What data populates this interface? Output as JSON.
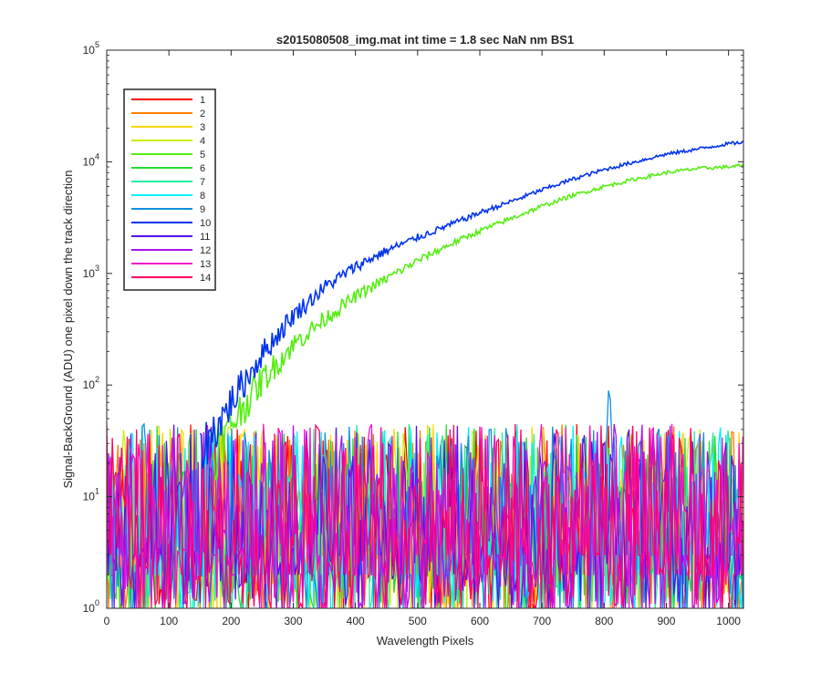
{
  "chart_data": {
    "type": "line",
    "title": "s2015080508_img.mat int time = 1.8 sec  NaN nm BS1",
    "xlabel": "Wavelength Pixels",
    "ylabel": "Signal-BackGround (ADU) one pixel down the track direction",
    "xlim": [
      0,
      1024
    ],
    "ylim": [
      1,
      100000
    ],
    "yscale": "log",
    "x_ticks": [
      0,
      100,
      200,
      300,
      400,
      500,
      600,
      700,
      800,
      900,
      1000
    ],
    "y_ticks": [
      {
        "value": 1,
        "base": "10",
        "exp": "0"
      },
      {
        "value": 10,
        "base": "10",
        "exp": "1"
      },
      {
        "value": 100,
        "base": "10",
        "exp": "2"
      },
      {
        "value": 1000,
        "base": "10",
        "exp": "3"
      },
      {
        "value": 10000,
        "base": "10",
        "exp": "4"
      },
      {
        "value": 100000,
        "base": "10",
        "exp": "5"
      }
    ],
    "grid": false,
    "legend_position": "top-left",
    "noise_range": [
      1,
      45
    ],
    "series": [
      {
        "name": "1",
        "color": "#ff0000",
        "noise": true
      },
      {
        "name": "2",
        "color": "#ff7f00",
        "noise": true
      },
      {
        "name": "3",
        "color": "#ffd700",
        "noise": true
      },
      {
        "name": "4",
        "color": "#c8f000",
        "noise": true
      },
      {
        "name": "5",
        "color": "#55ee11",
        "noise": false,
        "points": [
          [
            170,
            20
          ],
          [
            200,
            45
          ],
          [
            250,
            110
          ],
          [
            300,
            230
          ],
          [
            350,
            390
          ],
          [
            400,
            620
          ],
          [
            450,
            900
          ],
          [
            500,
            1300
          ],
          [
            550,
            1800
          ],
          [
            600,
            2400
          ],
          [
            650,
            3100
          ],
          [
            700,
            4000
          ],
          [
            750,
            5000
          ],
          [
            800,
            6000
          ],
          [
            850,
            7000
          ],
          [
            900,
            8000
          ],
          [
            950,
            8700
          ],
          [
            1000,
            9000
          ],
          [
            1024,
            9300
          ]
        ]
      },
      {
        "name": "6",
        "color": "#22dd33",
        "noise": true
      },
      {
        "name": "7",
        "color": "#22eea0",
        "noise": true
      },
      {
        "name": "8",
        "color": "#00f0ff",
        "noise": true
      },
      {
        "name": "9",
        "color": "#1090e0",
        "noise": true,
        "peak": {
          "x": 808,
          "value": 95
        }
      },
      {
        "name": "10",
        "color": "#0033ee",
        "noise": false,
        "points": [
          [
            150,
            25
          ],
          [
            180,
            45
          ],
          [
            200,
            70
          ],
          [
            250,
            190
          ],
          [
            300,
            420
          ],
          [
            350,
            750
          ],
          [
            400,
            1150
          ],
          [
            450,
            1600
          ],
          [
            500,
            2100
          ],
          [
            550,
            2700
          ],
          [
            600,
            3500
          ],
          [
            650,
            4400
          ],
          [
            700,
            5600
          ],
          [
            750,
            7000
          ],
          [
            800,
            8500
          ],
          [
            850,
            10000
          ],
          [
            900,
            11700
          ],
          [
            950,
            13000
          ],
          [
            1000,
            14500
          ],
          [
            1024,
            15000
          ]
        ]
      },
      {
        "name": "11",
        "color": "#5511ee",
        "noise": true
      },
      {
        "name": "12",
        "color": "#aa11ee",
        "noise": true
      },
      {
        "name": "13",
        "color": "#ee11cc",
        "noise": true
      },
      {
        "name": "14",
        "color": "#ff0066",
        "noise": true
      }
    ]
  }
}
